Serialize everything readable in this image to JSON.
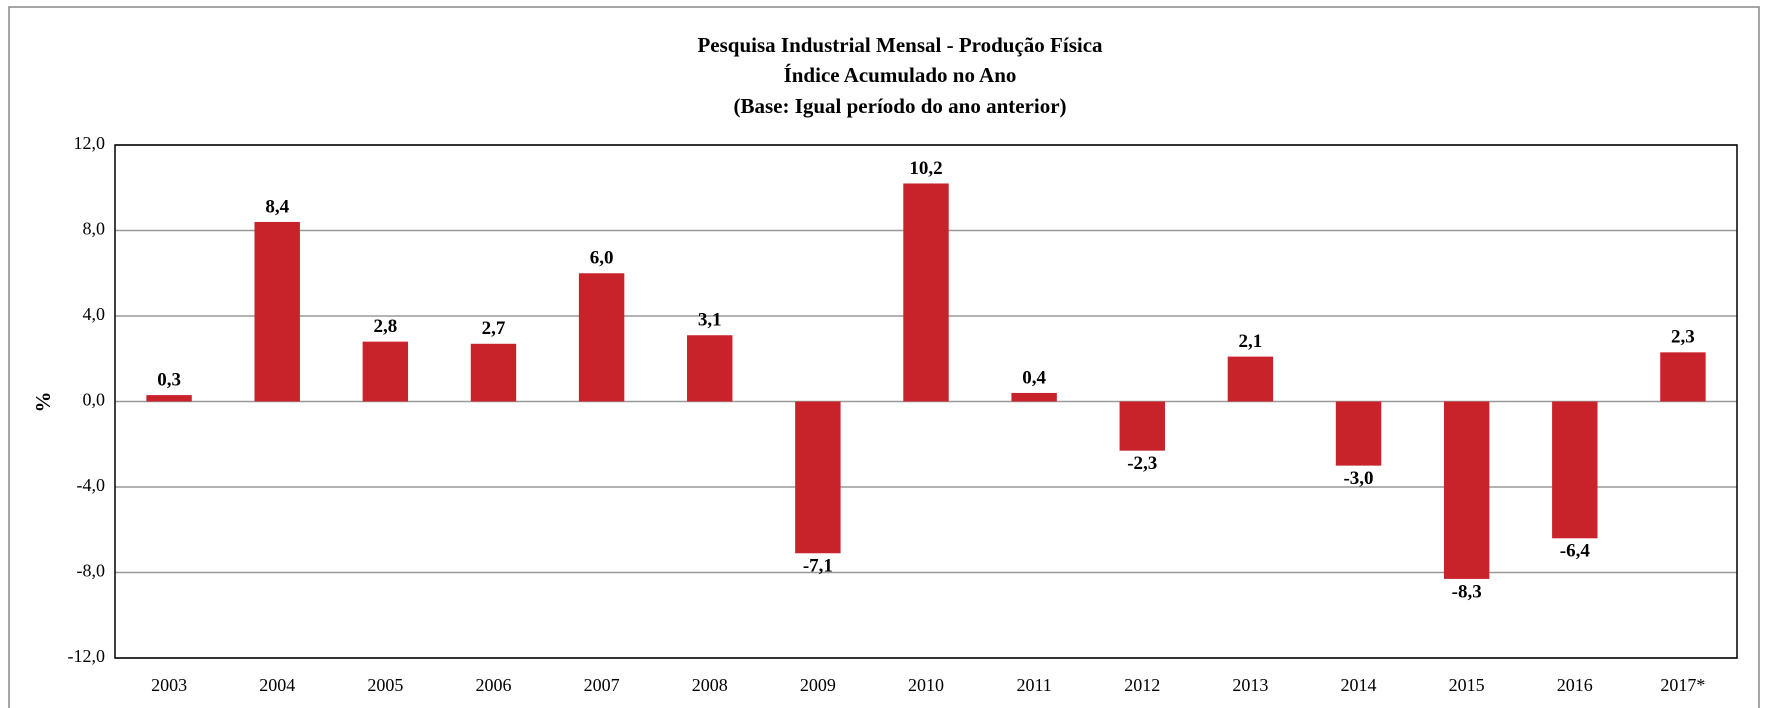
{
  "chart_data": {
    "type": "bar",
    "title": "Pesquisa Industrial Mensal - Produção Física",
    "subtitle": "Índice Acumulado no Ano",
    "subtitle2": "(Base: Igual período do ano anterior)",
    "y_label": "%",
    "categories": [
      "2003",
      "2004",
      "2005",
      "2006",
      "2007",
      "2008",
      "2009",
      "2010",
      "2011",
      "2012",
      "2013",
      "2014",
      "2015",
      "2016",
      "2017*"
    ],
    "values": [
      0.3,
      8.4,
      2.8,
      2.7,
      6.0,
      3.1,
      -7.1,
      10.2,
      0.4,
      -2.3,
      2.1,
      -3.0,
      -8.3,
      -6.4,
      2.3
    ],
    "value_labels": [
      "0,3",
      "8,4",
      "2,8",
      "2,7",
      "6,0",
      "3,1",
      "-7,1",
      "10,2",
      "0,4",
      "-2,3",
      "2,1",
      "-3,0",
      "-8,3",
      "-6,4",
      "2,3"
    ],
    "color": "#c8232a",
    "ylim": [
      -12,
      12
    ],
    "yticks": [
      {
        "value": -12,
        "label": "-12,0"
      },
      {
        "value": -8,
        "label": "-8,0"
      },
      {
        "value": -4,
        "label": "-4,0"
      },
      {
        "value": 0,
        "label": "0,0"
      },
      {
        "value": 4,
        "label": "4,0"
      },
      {
        "value": 8,
        "label": "8,0"
      },
      {
        "value": 12,
        "label": "12,0"
      }
    ],
    "grid": true
  }
}
